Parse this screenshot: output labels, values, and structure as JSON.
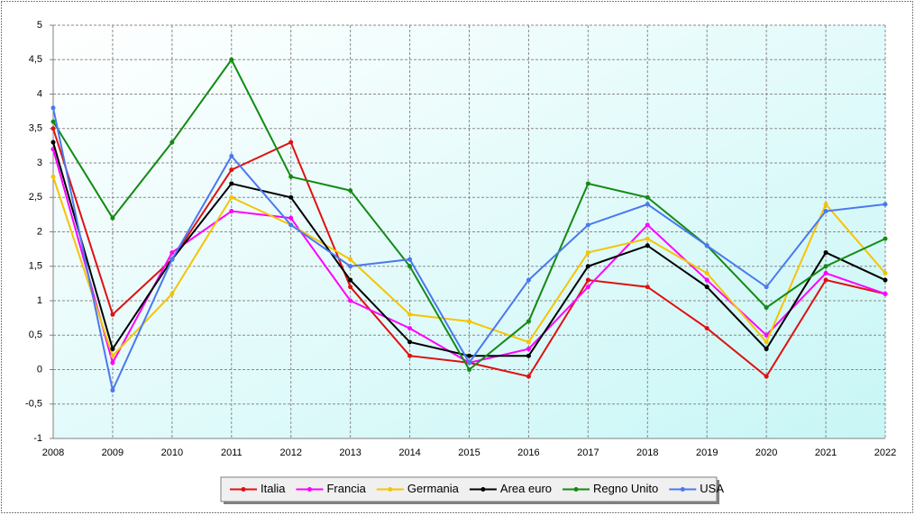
{
  "chart_data": {
    "type": "line",
    "categories": [
      "2008",
      "2009",
      "2010",
      "2011",
      "2012",
      "2013",
      "2014",
      "2015",
      "2016",
      "2017",
      "2018",
      "2019",
      "2020",
      "2021",
      "2022"
    ],
    "series": [
      {
        "name": "Italia",
        "color": "#e01010",
        "values": [
          3.5,
          0.8,
          1.6,
          2.9,
          3.3,
          1.2,
          0.2,
          0.1,
          -0.1,
          1.3,
          1.2,
          0.6,
          -0.1,
          1.3,
          1.1
        ]
      },
      {
        "name": "Francia",
        "color": "#ff00ff",
        "values": [
          3.2,
          0.1,
          1.7,
          2.3,
          2.2,
          1.0,
          0.6,
          0.1,
          0.3,
          1.2,
          2.1,
          1.3,
          0.5,
          1.4,
          1.1
        ]
      },
      {
        "name": "Germania",
        "color": "#f5c400",
        "values": [
          2.8,
          0.2,
          1.1,
          2.5,
          2.1,
          1.6,
          0.8,
          0.7,
          0.4,
          1.7,
          1.9,
          1.4,
          0.4,
          2.4,
          1.4
        ]
      },
      {
        "name": "Area euro",
        "color": "#000000",
        "values": [
          3.3,
          0.3,
          1.6,
          2.7,
          2.5,
          1.3,
          0.4,
          0.2,
          0.2,
          1.5,
          1.8,
          1.2,
          0.3,
          1.7,
          1.3
        ]
      },
      {
        "name": "Regno Unito",
        "color": "#138a13",
        "values": [
          3.6,
          2.2,
          3.3,
          4.5,
          2.8,
          2.6,
          1.5,
          0.0,
          0.7,
          2.7,
          2.5,
          1.8,
          0.9,
          1.5,
          1.9
        ]
      },
      {
        "name": "USA",
        "color": "#4a78f0",
        "values": [
          3.8,
          -0.3,
          1.6,
          3.1,
          2.1,
          1.5,
          1.6,
          0.1,
          1.3,
          2.1,
          2.4,
          1.8,
          1.2,
          2.3,
          2.4
        ]
      }
    ],
    "ylim": [
      -1,
      5
    ],
    "yticks": [
      -1,
      {
        "value": -0.5,
        "label": "-0,5"
      },
      0,
      {
        "value": 0.5,
        "label": "0,5"
      },
      1,
      {
        "value": 1.5,
        "label": "1,5"
      },
      2,
      {
        "value": 2.5,
        "label": "2,5"
      },
      3,
      {
        "value": 3.5,
        "label": "3,5"
      },
      4,
      {
        "value": 4.5,
        "label": "4,5"
      },
      5
    ],
    "grid": true,
    "legend": "bottom"
  }
}
